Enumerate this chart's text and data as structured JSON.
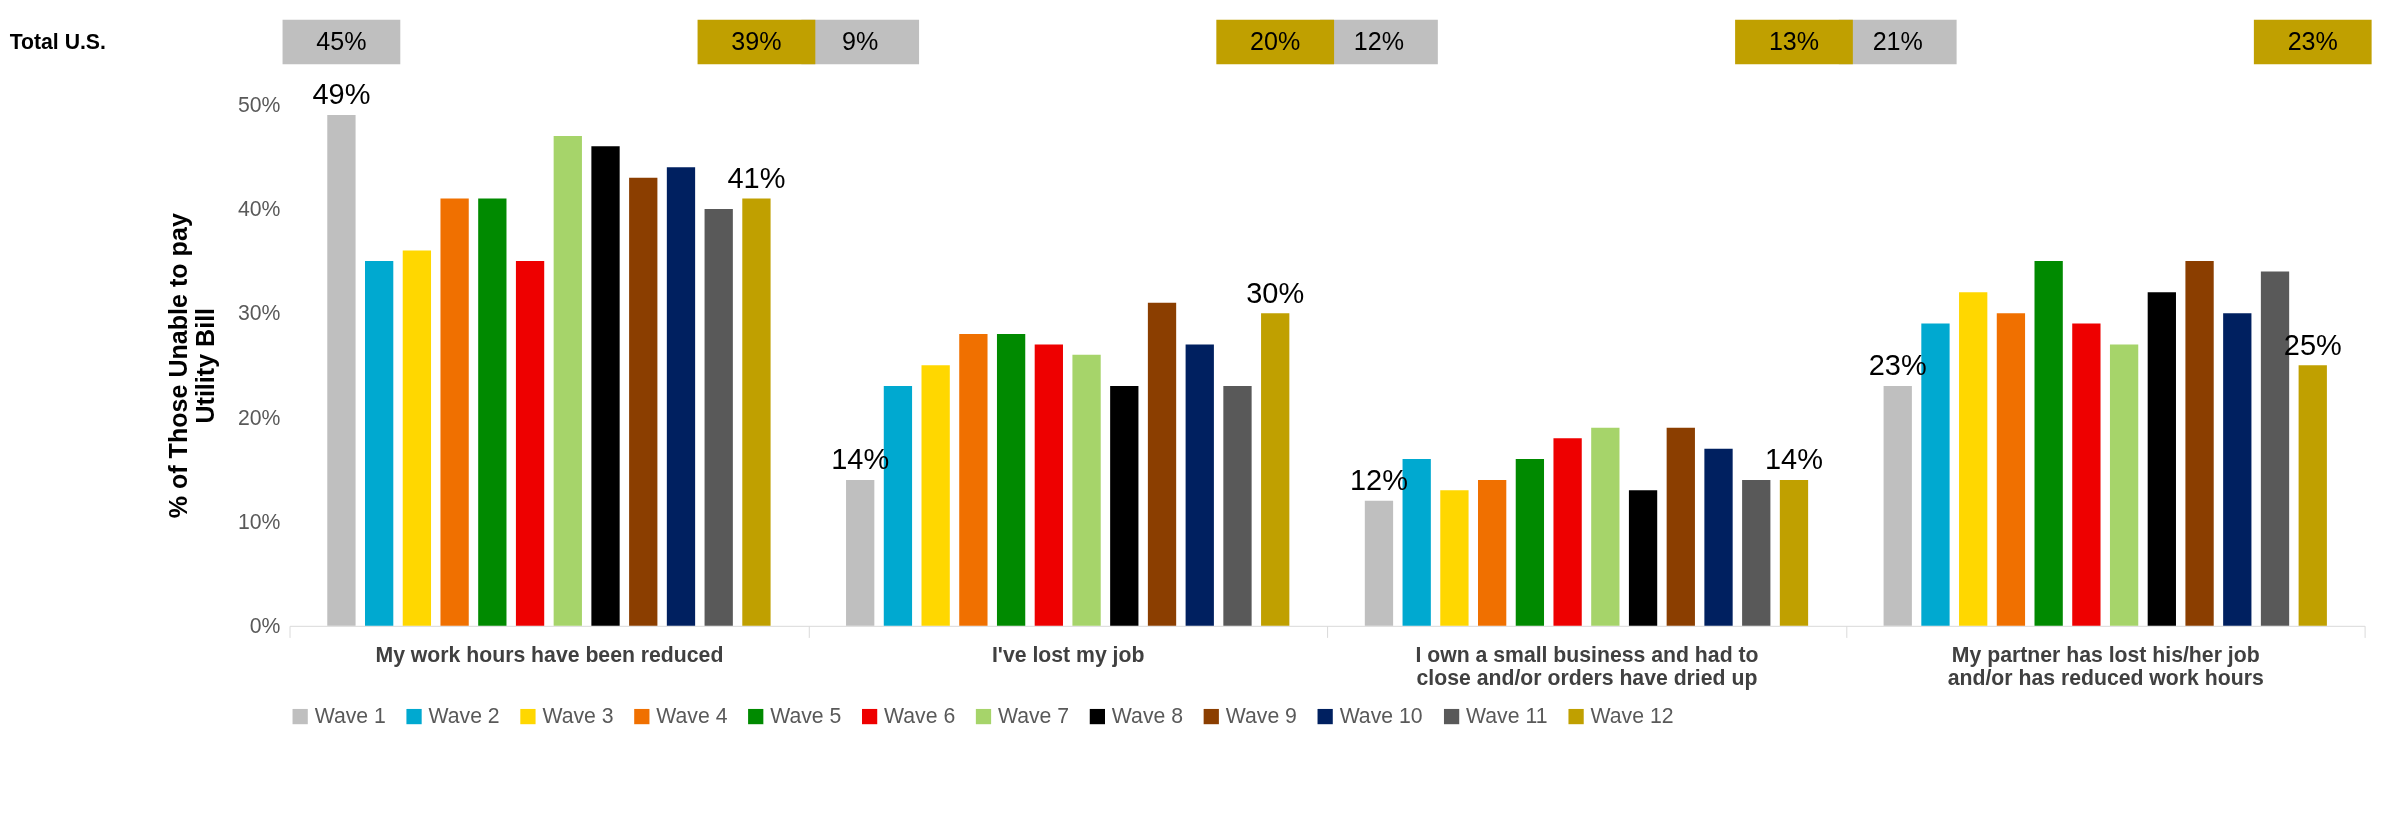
{
  "chart_data": {
    "type": "bar",
    "ylabel": "% of Those Unable to pay\nUtility Bill",
    "categories": [
      "My work hours have been reduced",
      "I've lost my job",
      "I own a small business and had to\nclose and/or orders have dried up",
      "My partner has lost his/her job\nand/or has reduced work hours"
    ],
    "series": [
      {
        "name": "Wave 1",
        "color": "#bfbfbf",
        "values": [
          49,
          14,
          12,
          23
        ],
        "value_labels": [
          "49%",
          "14%",
          "12%",
          "23%"
        ]
      },
      {
        "name": "Wave 2",
        "color": "#00a9d0",
        "values": [
          35,
          23,
          16,
          29
        ]
      },
      {
        "name": "Wave 3",
        "color": "#ffd700",
        "values": [
          36,
          25,
          13,
          32
        ]
      },
      {
        "name": "Wave 4",
        "color": "#f07000",
        "values": [
          41,
          28,
          14,
          30
        ]
      },
      {
        "name": "Wave 5",
        "color": "#008a00",
        "values": [
          41,
          28,
          16,
          35
        ]
      },
      {
        "name": "Wave 6",
        "color": "#ee0000",
        "values": [
          35,
          27,
          18,
          29
        ]
      },
      {
        "name": "Wave 7",
        "color": "#a6d46a",
        "values": [
          47,
          26,
          19,
          27
        ]
      },
      {
        "name": "Wave 8",
        "color": "#000000",
        "values": [
          46,
          23,
          13,
          32
        ]
      },
      {
        "name": "Wave 9",
        "color": "#8b3e00",
        "values": [
          43,
          31,
          19,
          35
        ]
      },
      {
        "name": "Wave 10",
        "color": "#002060",
        "values": [
          44,
          27,
          17,
          30
        ]
      },
      {
        "name": "Wave 11",
        "color": "#595959",
        "values": [
          40,
          23,
          14,
          34
        ]
      },
      {
        "name": "Wave 12",
        "color": "#c0a000",
        "values": [
          41,
          30,
          14,
          25
        ],
        "value_labels": [
          "41%",
          "30%",
          "14%",
          "25%"
        ]
      }
    ],
    "ylim": [
      0,
      50
    ],
    "yticks": [
      {
        "value": 0,
        "label": "0%"
      },
      {
        "value": 10,
        "label": "10%"
      },
      {
        "value": 20,
        "label": "20%"
      },
      {
        "value": 30,
        "label": "30%"
      },
      {
        "value": 40,
        "label": "40%"
      },
      {
        "value": 50,
        "label": "50%"
      }
    ],
    "grid": false,
    "legend": "bottom",
    "annotations": [
      "Total U.S.",
      "45%",
      "39%",
      "9%",
      "20%",
      "12%",
      "13%",
      "21%",
      "23%"
    ]
  }
}
